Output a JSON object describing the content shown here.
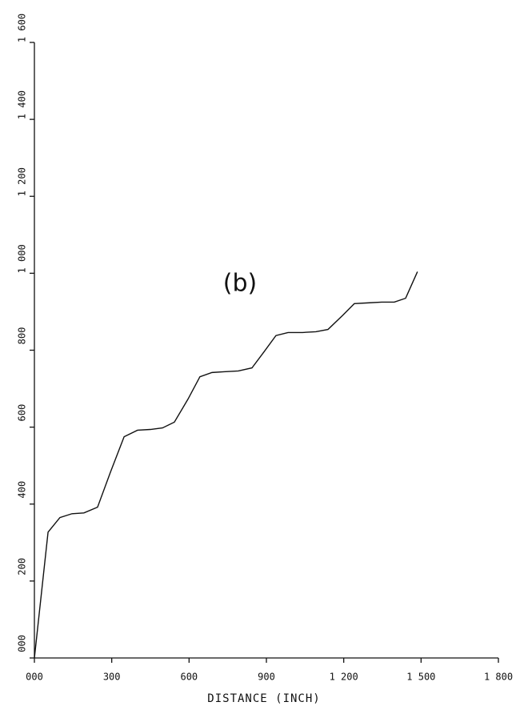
{
  "chart_data": {
    "type": "line",
    "x_label": "DISTANCE (INCH)",
    "annotation": "(b)",
    "xlim": [
      0,
      1800
    ],
    "xticks": [
      {
        "value": 0,
        "label": "000"
      },
      300,
      600,
      900,
      {
        "value": 1200,
        "label": "1 200"
      },
      {
        "value": 1500,
        "label": "1 500"
      },
      {
        "value": 1800,
        "label": "1 800"
      }
    ],
    "ylim": [
      0,
      1600
    ],
    "yticks": [
      {
        "value": 0,
        "label": "000"
      },
      200,
      400,
      600,
      800,
      {
        "value": 1000,
        "label": "1 000"
      },
      {
        "value": 1200,
        "label": "1 200"
      },
      {
        "value": 1400,
        "label": "1 400"
      },
      {
        "value": 1600,
        "label": "1 600"
      }
    ],
    "color": "#111111",
    "x": [
      0,
      53,
      99,
      146,
      192,
      245,
      295,
      348,
      400,
      450,
      497,
      543,
      596,
      642,
      689,
      735,
      791,
      844,
      891,
      937,
      984,
      1040,
      1092,
      1139,
      1195,
      1241,
      1294,
      1347,
      1396,
      1440,
      1486
    ],
    "values": [
      0,
      327,
      365,
      375,
      377,
      392,
      483,
      575,
      592,
      594,
      598,
      613,
      673,
      731,
      742,
      744,
      746,
      754,
      796,
      838,
      846,
      846,
      848,
      854,
      890,
      921,
      923,
      925,
      925,
      935,
      1004
    ]
  }
}
